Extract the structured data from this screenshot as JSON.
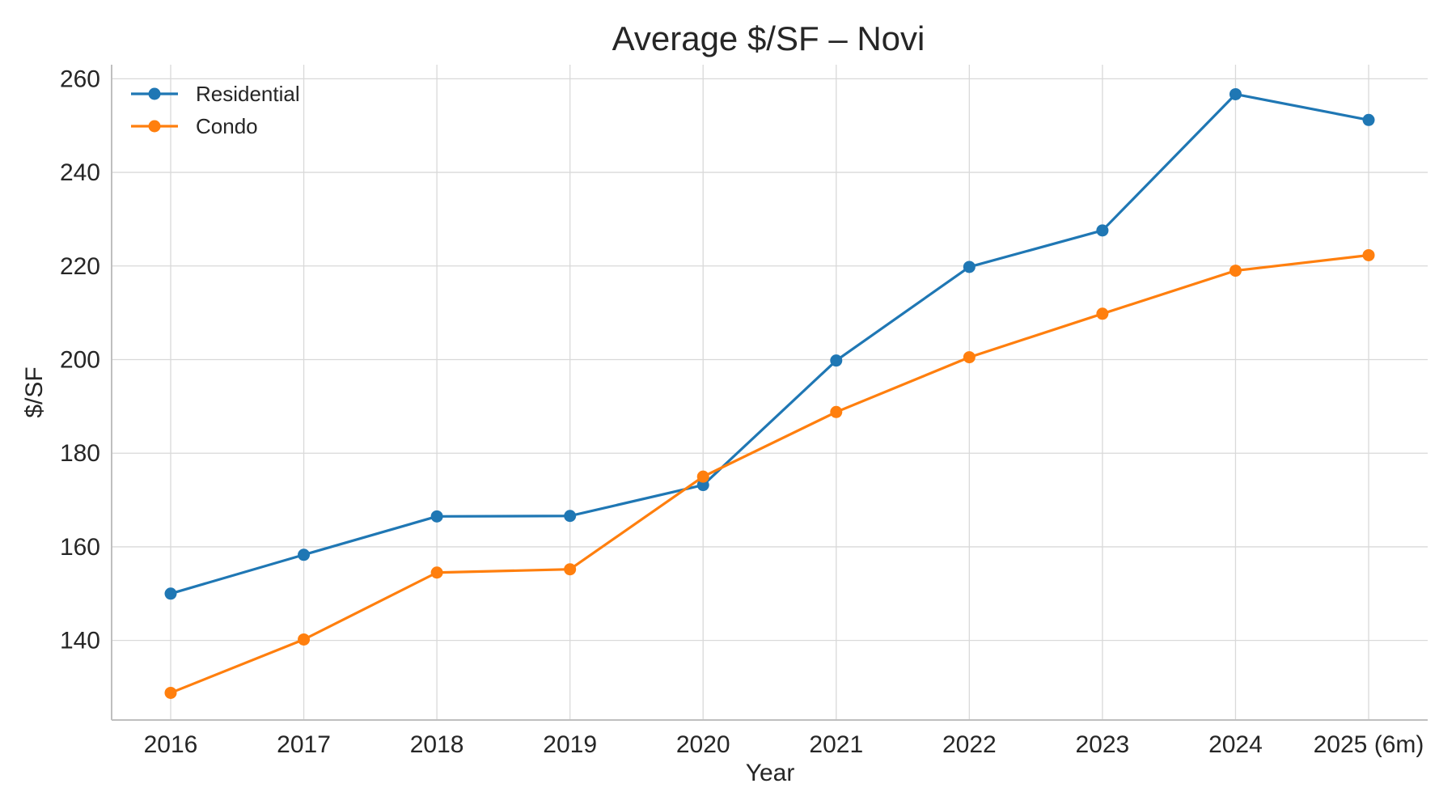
{
  "chart_data": {
    "type": "line",
    "title": "Average $/SF – Novi",
    "xlabel": "Year",
    "ylabel": "$/SF",
    "categories": [
      "2016",
      "2017",
      "2018",
      "2019",
      "2020",
      "2021",
      "2022",
      "2023",
      "2024",
      "2025 (6m)"
    ],
    "yticks": [
      140,
      160,
      180,
      200,
      220,
      240,
      260
    ],
    "ylim": [
      123,
      263
    ],
    "grid": true,
    "legend_position": "top-left",
    "series": [
      {
        "name": "Residential",
        "color": "#1f77b4",
        "values": [
          150.0,
          158.3,
          166.5,
          166.6,
          173.2,
          199.8,
          219.8,
          227.6,
          256.7,
          251.2
        ]
      },
      {
        "name": "Condo",
        "color": "#ff7f0e",
        "values": [
          128.8,
          140.2,
          154.5,
          155.2,
          175.0,
          188.8,
          200.5,
          209.8,
          219.0,
          222.3
        ]
      }
    ]
  }
}
